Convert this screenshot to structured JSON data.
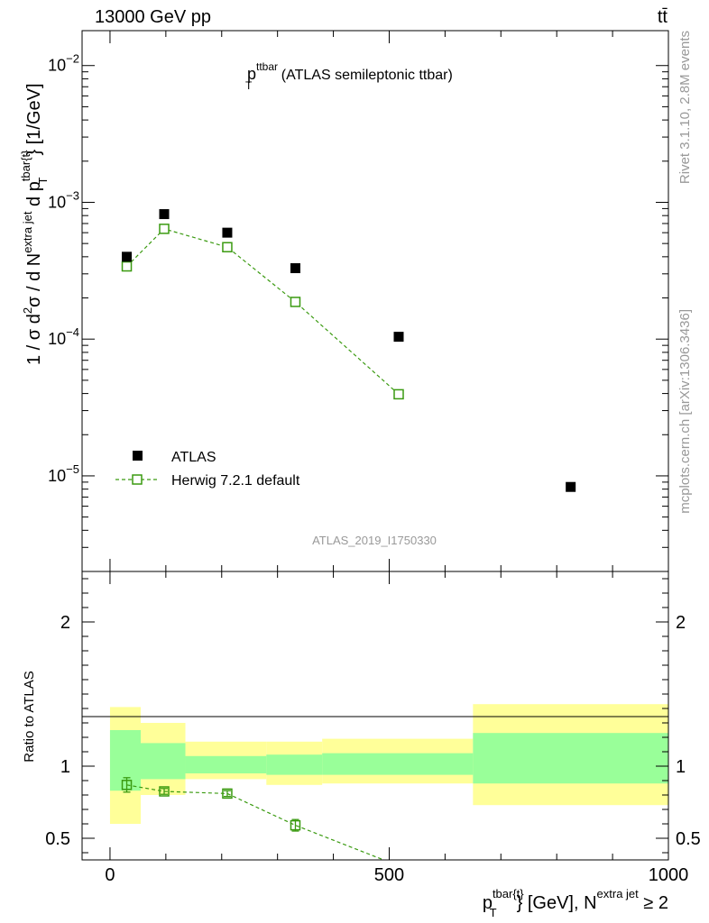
{
  "header": {
    "energy_label": "13000 GeV pp",
    "process_label": "tt̄"
  },
  "side_labels": {
    "rivet": "Rivet 3.1.10,  2.8M events",
    "mcplots": "mcplots.cern.ch [arXiv:1306.3436]"
  },
  "chart_data": [
    {
      "type": "scatter",
      "title_main": "p",
      "title_sup": "ttbar",
      "title_sub": "T",
      "title_rest": " (ATLAS semileptonic ttbar)",
      "ylabel": "1 / σ d²σ / d N^{extra jet} d p_T^{tbar{t}} [1/GeV]",
      "ylabel_parts": {
        "a": "1 / σ d",
        "a_sup": "2",
        "b": "σ / d N",
        "b_sup": "extra jet",
        "c": " d p",
        "c_sub": "T",
        "c_sup": "tbar{t}",
        "d": "} [1/GeV]"
      },
      "yscale": "log",
      "ylim": [
        2e-06,
        0.018
      ],
      "xlim": [
        -50,
        1000
      ],
      "ytick_labels": [
        {
          "value": 1e-05,
          "base": "10",
          "exp": "−5"
        },
        {
          "value": 0.0001,
          "base": "10",
          "exp": "−4"
        },
        {
          "value": 0.001,
          "base": "10",
          "exp": "−3"
        },
        {
          "value": 0.01,
          "base": "10",
          "exp": "−2"
        }
      ],
      "watermark": "ATLAS_2019_I1750330",
      "legend_position": "lower-left",
      "series": [
        {
          "name": "ATLAS",
          "marker": "filled-square",
          "color": "#000000",
          "x": [
            30,
            97,
            210,
            332,
            517,
            825
          ],
          "y": [
            0.0004,
            0.00082,
            0.0006,
            0.00033,
            0.000104,
            8.3e-06
          ]
        },
        {
          "name": "Herwig 7.2.1 default",
          "marker": "open-square",
          "line": "dashed",
          "color": "#3a9a10",
          "x": [
            30,
            97,
            210,
            332,
            517
          ],
          "y": [
            0.00034,
            0.00064,
            0.00047,
            0.000187,
            3.95e-05
          ]
        }
      ]
    },
    {
      "type": "line",
      "ylabel": "Ratio to ATLAS",
      "xlabel": "p_T^{tbar{t}} [GeV], N^{extra jet} ≥ 2",
      "xlabel_parts": {
        "a": "p",
        "a_sub": "T",
        "a_sup": "tbar{t}",
        "b": "} [GeV], N",
        "b_sup": "extra jet",
        "c": " ≥ 2"
      },
      "ylim": [
        0.35,
        2.35
      ],
      "xlim": [
        -50,
        1000
      ],
      "ytick_labels": [
        "0.5",
        "1",
        "2"
      ],
      "xtick_labels": [
        "0",
        "500",
        "1000"
      ],
      "bands": [
        {
          "x0": 0,
          "x1": 55,
          "yellow": [
            0.6,
            1.41
          ],
          "green": [
            0.83,
            1.25
          ]
        },
        {
          "x0": 55,
          "x1": 135,
          "yellow": [
            0.8,
            1.3
          ],
          "green": [
            0.91,
            1.16
          ]
        },
        {
          "x0": 135,
          "x1": 280,
          "yellow": [
            0.91,
            1.17
          ],
          "green": [
            0.95,
            1.07
          ]
        },
        {
          "x0": 280,
          "x1": 380,
          "yellow": [
            0.87,
            1.17
          ],
          "green": [
            0.94,
            1.08
          ]
        },
        {
          "x0": 380,
          "x1": 650,
          "yellow": [
            0.88,
            1.19
          ],
          "green": [
            0.94,
            1.09
          ]
        },
        {
          "x0": 650,
          "x1": 1000,
          "yellow": [
            0.73,
            1.43
          ],
          "green": [
            0.88,
            1.23
          ]
        }
      ],
      "series": [
        {
          "name": "Herwig 7.2.1 default",
          "color": "#3a9a10",
          "x": [
            30,
            97,
            210,
            332
          ],
          "y": [
            0.87,
            0.825,
            0.81,
            0.59
          ],
          "yerr": [
            0.05,
            0.02,
            0.02,
            0.04
          ],
          "line_end": {
            "x": 490,
            "y": 0.33
          }
        }
      ]
    }
  ]
}
